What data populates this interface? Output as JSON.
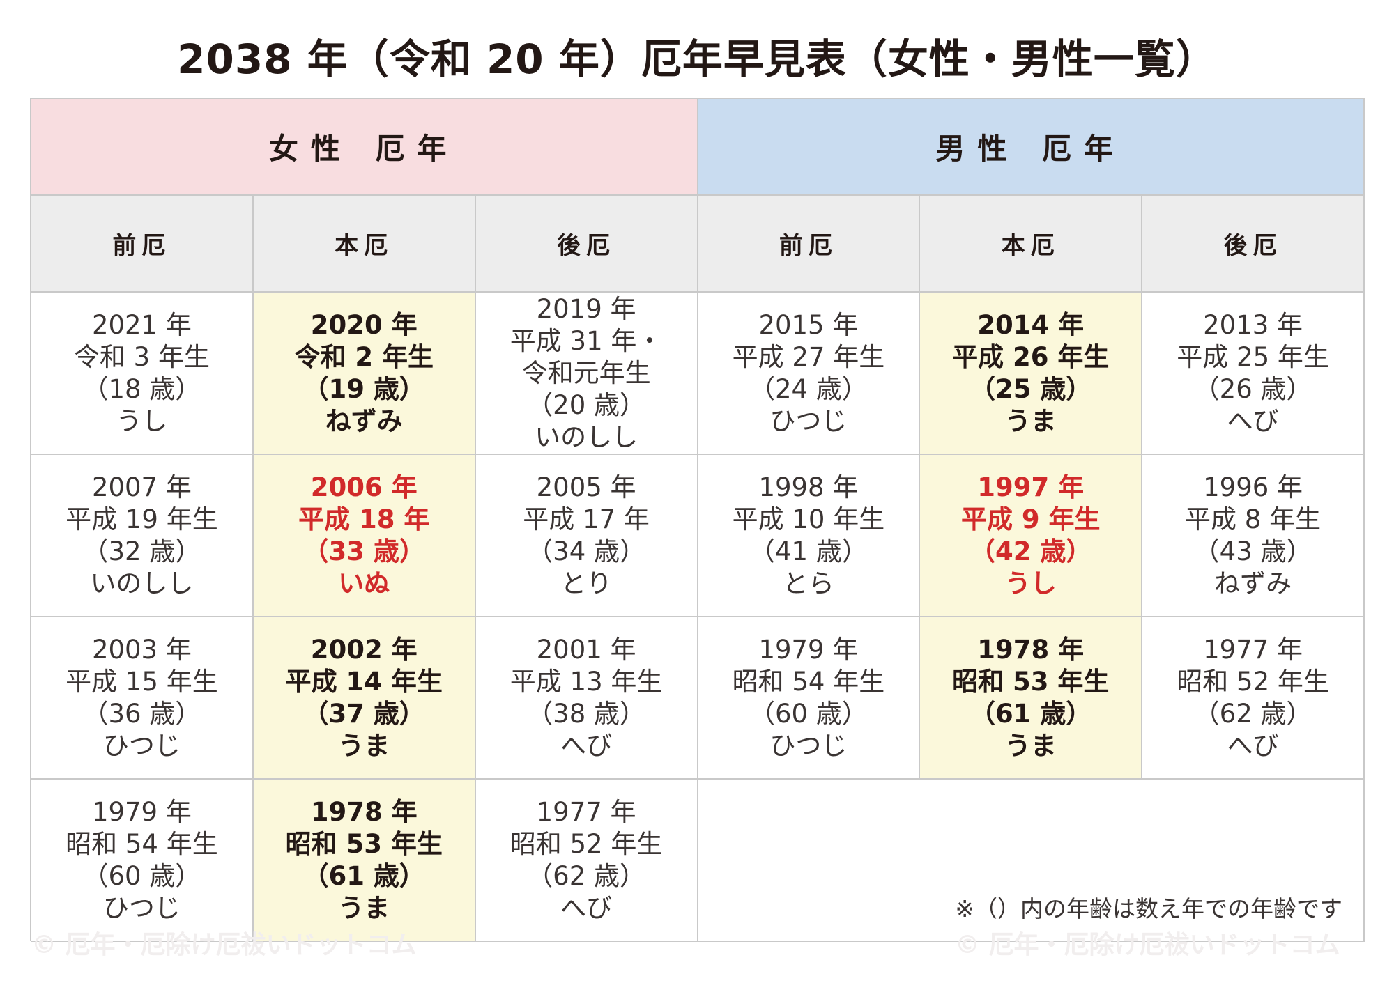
{
  "title": "2038 年（令和 20 年）厄年早見表（女性・男性一覧）",
  "headers": {
    "female": "女性 厄年",
    "male": "男性 厄年",
    "periods": [
      "前厄",
      "本厄",
      "後厄",
      "前厄",
      "本厄",
      "後厄"
    ]
  },
  "rows": [
    [
      {
        "lines": [
          "2021 年",
          "令和 3 年生",
          "（18 歳）",
          "うし"
        ]
      },
      {
        "lines": [
          "2020 年",
          "令和 2 年生",
          "（19 歳）",
          "ねずみ"
        ]
      },
      {
        "lines": [
          "2019 年",
          "平成 31 年・",
          "令和元年生",
          "（20 歳）",
          "いのしし"
        ]
      },
      {
        "lines": [
          "2015 年",
          "平成 27 年生",
          "（24 歳）",
          "ひつじ"
        ]
      },
      {
        "lines": [
          "2014 年",
          "平成 26 年生",
          "（25 歳）",
          "うま"
        ]
      },
      {
        "lines": [
          "2013 年",
          "平成 25 年生",
          "（26 歳）",
          "へび"
        ]
      }
    ],
    [
      {
        "lines": [
          "2007 年",
          "平成 19 年生",
          "（32 歳）",
          "いのしし"
        ]
      },
      {
        "lines": [
          "2006 年",
          "平成 18 年",
          "（33 歳）",
          "いぬ"
        ]
      },
      {
        "lines": [
          "2005 年",
          "平成 17 年",
          "（34 歳）",
          "とり"
        ]
      },
      {
        "lines": [
          "1998 年",
          "平成 10 年生",
          "（41 歳）",
          "とら"
        ]
      },
      {
        "lines": [
          "1997 年",
          "平成 9 年生",
          "（42 歳）",
          "うし"
        ]
      },
      {
        "lines": [
          "1996 年",
          "平成 8 年生",
          "（43 歳）",
          "ねずみ"
        ]
      }
    ],
    [
      {
        "lines": [
          "2003 年",
          "平成 15 年生",
          "（36 歳）",
          "ひつじ"
        ]
      },
      {
        "lines": [
          "2002 年",
          "平成 14 年生",
          "（37 歳）",
          "うま"
        ]
      },
      {
        "lines": [
          "2001 年",
          "平成 13 年生",
          "（38 歳）",
          "へび"
        ]
      },
      {
        "lines": [
          "1979 年",
          "昭和 54 年生",
          "（60 歳）",
          "ひつじ"
        ]
      },
      {
        "lines": [
          "1978 年",
          "昭和 53 年生",
          "（61 歳）",
          "うま"
        ]
      },
      {
        "lines": [
          "1977 年",
          "昭和 52 年生",
          "（62 歳）",
          "へび"
        ]
      }
    ],
    [
      {
        "lines": [
          "1979 年",
          "昭和 54 年生",
          "（60 歳）",
          "ひつじ"
        ]
      },
      {
        "lines": [
          "1978 年",
          "昭和 53 年生",
          "（61 歳）",
          "うま"
        ]
      },
      {
        "lines": [
          "1977 年",
          "昭和 52 年生",
          "（62 歳）",
          "へび"
        ]
      }
    ]
  ],
  "note": "※（）内の年齢は数え年での年齢です",
  "watermark": "© 厄年・厄除け厄祓いドットコム",
  "colors": {
    "female_header": "#f8dde0",
    "male_header": "#c9dcf0",
    "period_header": "#ededed",
    "main_yaku_highlight": "#fbf8db",
    "important_red": "#d12a2a"
  }
}
